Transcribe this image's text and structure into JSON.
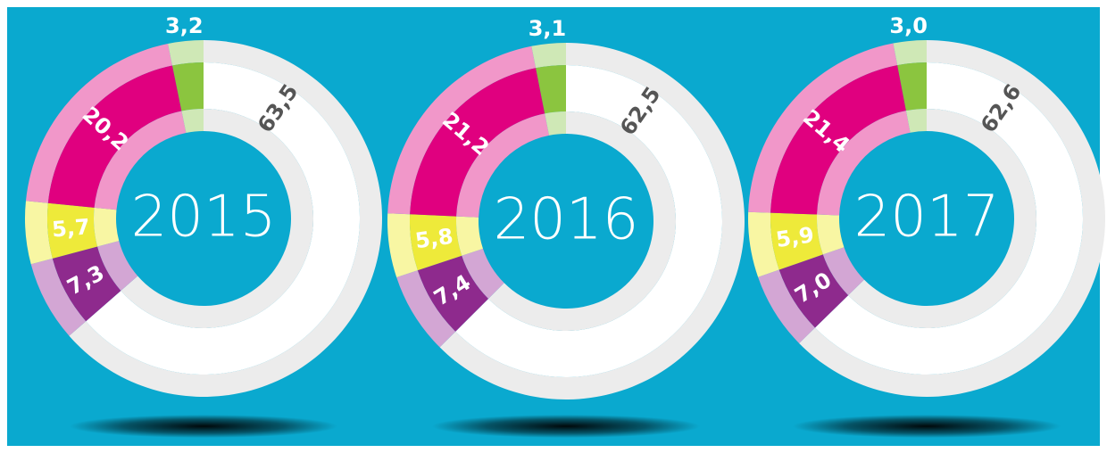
{
  "chart_data": [
    {
      "type": "donut",
      "title": "2015",
      "values": [
        63.5,
        7.3,
        5.7,
        20.2,
        3.2
      ],
      "value_labels": [
        "63,5",
        "7,3",
        "5,7",
        "20,2",
        "3,2"
      ],
      "colors": [
        "#ffffff",
        "#8e2a8d",
        "#eeea3a",
        "#e0007f",
        "#8bc53f"
      ],
      "ring_colors": [
        "#ececec",
        "#d3a6d4",
        "#f8f6a3",
        "#f197c9",
        "#cfe8b6"
      ]
    },
    {
      "type": "donut",
      "title": "2016",
      "values": [
        62.5,
        7.4,
        5.8,
        21.2,
        3.1
      ],
      "value_labels": [
        "62,5",
        "7,4",
        "5,8",
        "21,2",
        "3,1"
      ],
      "colors": [
        "#ffffff",
        "#8e2a8d",
        "#eeea3a",
        "#e0007f",
        "#8bc53f"
      ],
      "ring_colors": [
        "#ececec",
        "#d3a6d4",
        "#f8f6a3",
        "#f197c9",
        "#cfe8b6"
      ]
    },
    {
      "type": "donut",
      "title": "2017",
      "values": [
        62.6,
        7.0,
        5.9,
        21.4,
        3.0
      ],
      "value_labels": [
        "62,6",
        "7,0",
        "5,9",
        "21,4",
        "3,0"
      ],
      "colors": [
        "#ffffff",
        "#8e2a8d",
        "#eeea3a",
        "#e0007f",
        "#8bc53f"
      ],
      "ring_colors": [
        "#ececec",
        "#d3a6d4",
        "#f8f6a3",
        "#f197c9",
        "#cfe8b6"
      ]
    }
  ]
}
